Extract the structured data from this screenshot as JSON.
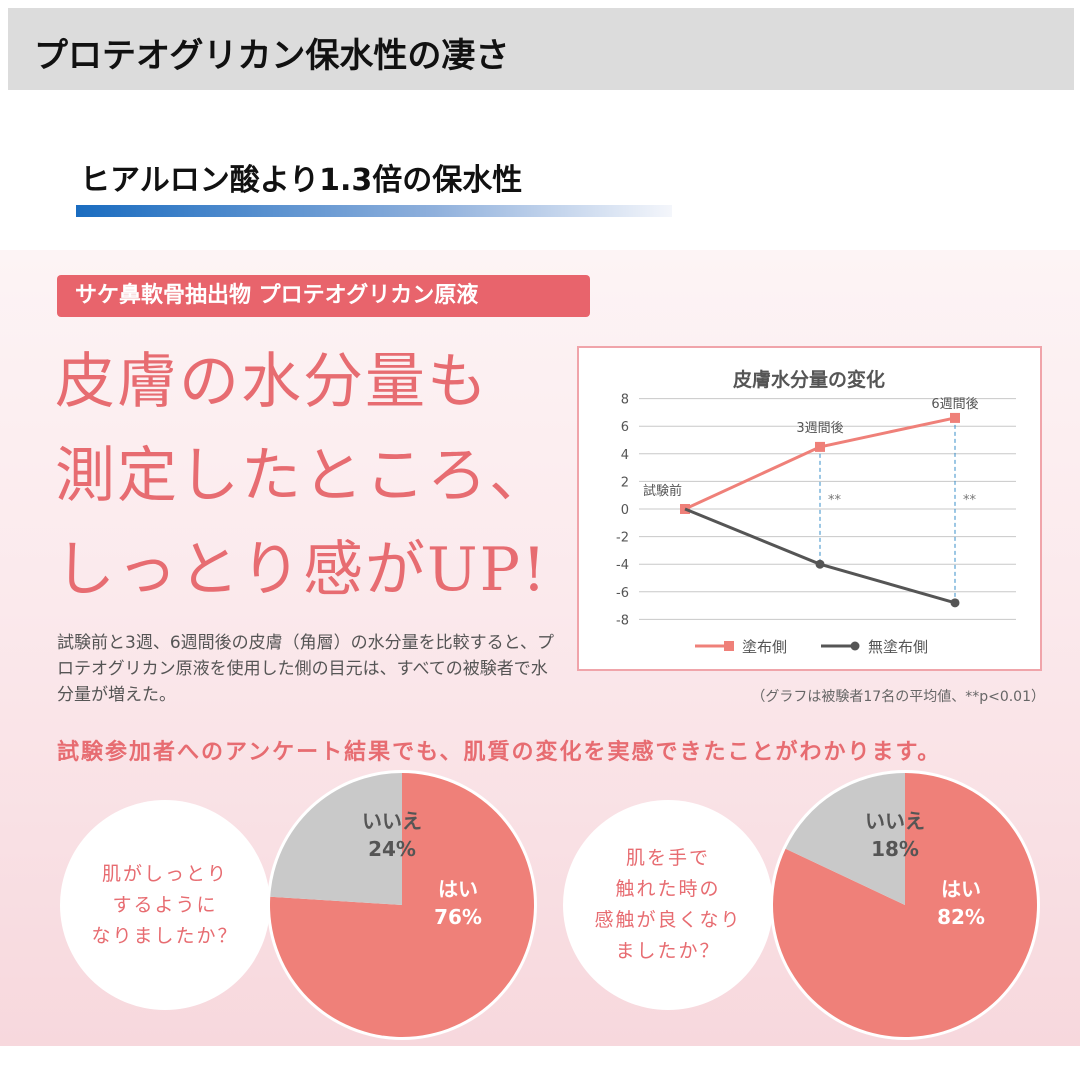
{
  "header": {
    "title": "プロテオグリカン保水性の凄さ"
  },
  "subtitle": "ヒアルロン酸より1.3倍の保水性",
  "tag": "サケ鼻軟骨抽出物 プロテオグリカン原液",
  "headline": [
    "皮膚の水分量も",
    "測定したところ、",
    "しっとり感がUP!"
  ],
  "paragraph": "試験前と3週、6週間後の皮膚（角層）の水分量を比較すると、プロテオグリカン原液を使用した側の目元は、すべての被験者で水分量が増えた。",
  "note": "（グラフは被験者17名の平均値、**p<0.01）",
  "survey_title": "試験参加者へのアンケート結果でも、肌質の変化を実感できたことがわかります。",
  "colors": {
    "accent": "#e76c71",
    "applied": "#ef8079",
    "untreated": "#555555",
    "pie_yes": "#ef8079",
    "pie_no": "#c9c9c9"
  },
  "chart_data": [
    {
      "type": "line",
      "title": "皮膚水分量の変化",
      "categories": [
        "試験前",
        "3週間後",
        "6週間後"
      ],
      "series": [
        {
          "name": "塗布側",
          "values": [
            0,
            4.5,
            6.6
          ],
          "marker": "square"
        },
        {
          "name": "無塗布側",
          "values": [
            0,
            -4.0,
            -6.8
          ],
          "marker": "circle"
        }
      ],
      "yticks": [
        "8",
        "6",
        "4",
        "2",
        "0",
        "-2",
        "-4",
        "-6",
        "-8"
      ],
      "ylim": [
        -8,
        8
      ],
      "grid": true,
      "legend": "bottom",
      "annotations": [
        "**",
        "**"
      ]
    },
    {
      "type": "pie",
      "question": [
        "肌がしっとり",
        "するように",
        "なりましたか？"
      ],
      "slices": [
        {
          "label": "はい",
          "value": 76,
          "text": "76%"
        },
        {
          "label": "いいえ",
          "value": 24,
          "text": "24%"
        }
      ]
    },
    {
      "type": "pie",
      "question": [
        "肌を手で",
        "触れた時の",
        "感触が良くなり",
        "ましたか？"
      ],
      "slices": [
        {
          "label": "はい",
          "value": 82,
          "text": "82%"
        },
        {
          "label": "いいえ",
          "value": 18,
          "text": "18%"
        }
      ]
    }
  ]
}
